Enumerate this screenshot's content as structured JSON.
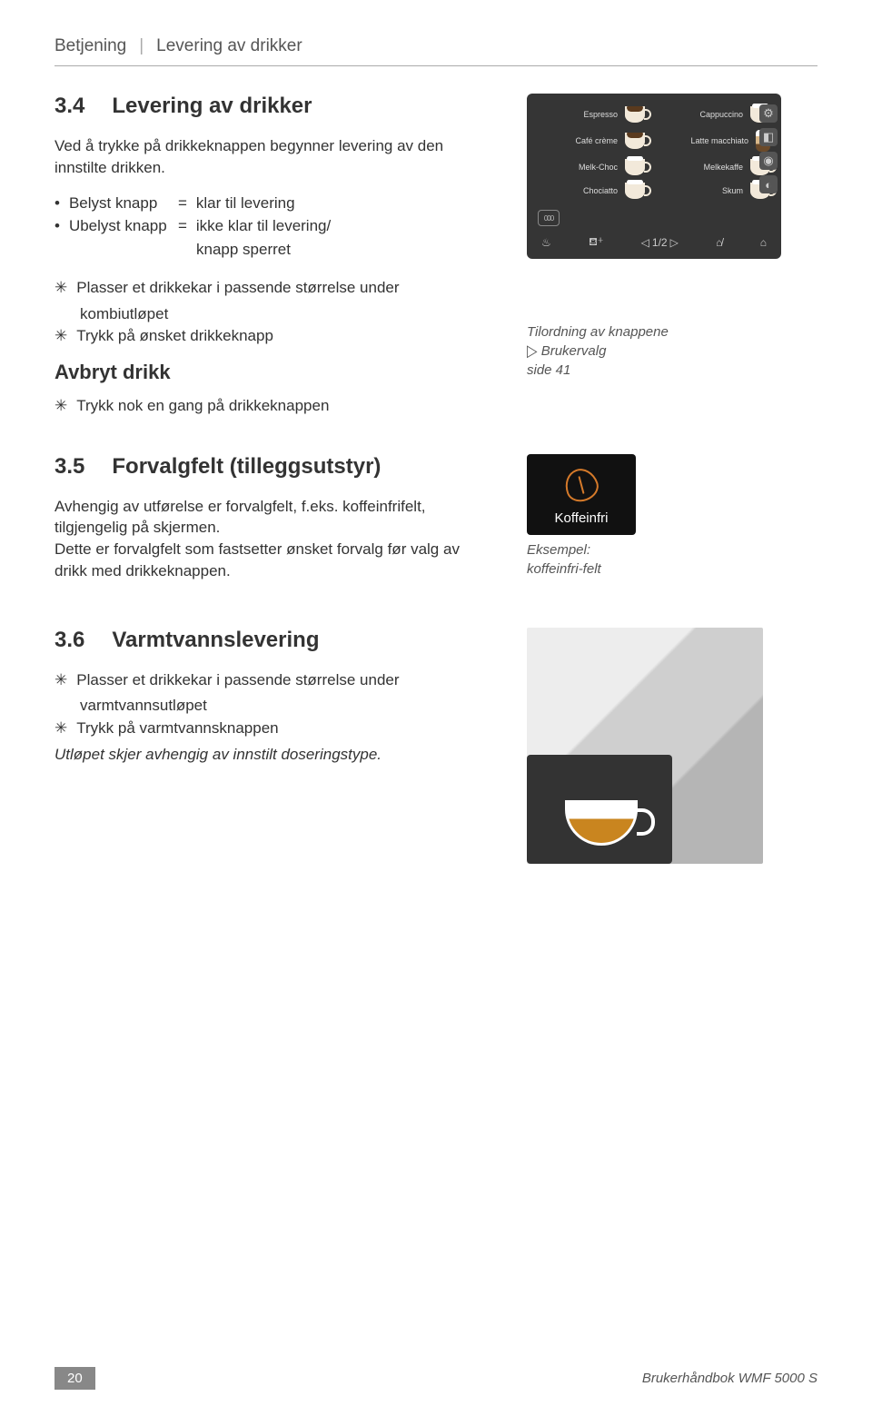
{
  "header": {
    "crumb1": "Betjening",
    "crumb2": "Levering av drikker"
  },
  "sec34": {
    "num": "3.4",
    "title": "Levering av drikker",
    "intro": "Ved å trykke på drikkeknappen begynner levering av den innstilte drikken.",
    "belyst_l": "Belyst knapp",
    "belyst_eq": "=",
    "belyst_r": "klar til levering",
    "ubelyst_l": "Ubelyst knapp",
    "ubelyst_eq": "=",
    "ubelyst_r1": "ikke klar til levering/",
    "ubelyst_r2": "knapp sperret",
    "step1a": "Plasser et drikkekar i passende størrelse under",
    "step1b": "kombiutløpet",
    "step2": "Trykk på ønsket drikkeknapp",
    "avbryt_title": "Avbryt drikk",
    "avbryt_step": "Trykk nok en gang på drikkeknappen"
  },
  "drinkpanel": {
    "items": [
      {
        "label": "Espresso",
        "style": "dark"
      },
      {
        "label": "Cappuccino",
        "style": "foam"
      },
      {
        "label": "Café crème",
        "style": "dark"
      },
      {
        "label": "Latte macchiato",
        "style": "glass"
      },
      {
        "label": "Melk-Choc",
        "style": "foam"
      },
      {
        "label": "Melkekaffe",
        "style": "foam"
      },
      {
        "label": "Chociatto",
        "style": "foam"
      },
      {
        "label": "Skum",
        "style": "foam"
      }
    ],
    "pin_code": "000",
    "page_label": "1/2",
    "colors": {
      "panel_bg": "#353535",
      "text": "#dddddd"
    }
  },
  "aside34": {
    "line1": "Tilordning av knappene",
    "line2": "Brukervalg",
    "line3": "side 41"
  },
  "sec35": {
    "num": "3.5",
    "title": "Forvalgfelt (tilleggsutstyr)",
    "para": "Avhengig av utførelse er forvalgfelt, f.eks. koffeinfrifelt, tilgjengelig på skjermen.\nDette er forvalgfelt som fastsetter ønsket forvalg før valg av drikk med drikkeknappen.",
    "badge_label": "Koffeinfri",
    "aside_l1": "Eksempel:",
    "aside_l2": "koffeinfri-felt"
  },
  "sec36": {
    "num": "3.6",
    "title": "Varmtvannslevering",
    "step1a": "Plasser et drikkekar i passende størrelse under",
    "step1b": "varmtvannsutløpet",
    "step2": "Trykk på varmtvannsknappen",
    "note": "Utløpet skjer avhengig av innstilt doseringstype."
  },
  "footer": {
    "page": "20",
    "title": "Brukerhåndbok WMF 5000 S"
  }
}
